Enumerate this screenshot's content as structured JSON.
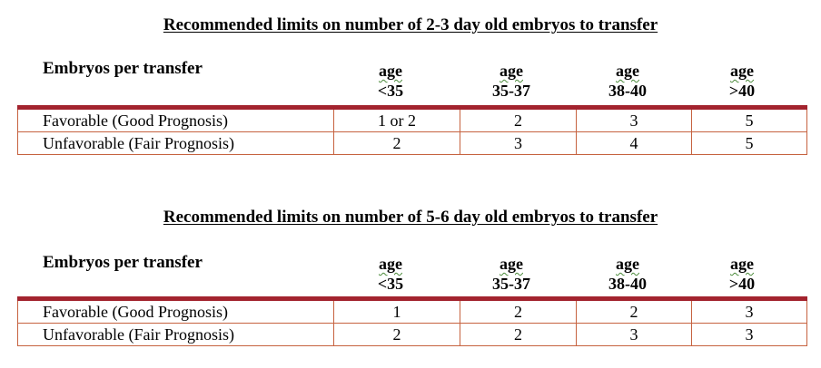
{
  "tables": [
    {
      "title": "Recommended limits on number of 2-3 day old embryos to transfer",
      "row_header": "Embryos per transfer",
      "columns": [
        {
          "age": "age",
          "range": "<35"
        },
        {
          "age": "age",
          "range": "35-37"
        },
        {
          "age": "age",
          "range": "38-40"
        },
        {
          "age": "age",
          "range": ">40"
        }
      ],
      "rows": [
        {
          "label": "Favorable (Good Prognosis)",
          "values": [
            "1 or 2",
            "2",
            "3",
            "5"
          ]
        },
        {
          "label": "Unfavorable (Fair Prognosis)",
          "values": [
            "2",
            "3",
            "4",
            "5"
          ]
        }
      ]
    },
    {
      "title": "Recommended limits on number of 5-6 day old embryos to transfer",
      "row_header": "Embryos per transfer",
      "columns": [
        {
          "age": "age",
          "range": "<35"
        },
        {
          "age": "age",
          "range": "35-37"
        },
        {
          "age": "age",
          "range": "38-40"
        },
        {
          "age": "age",
          "range": ">40"
        }
      ],
      "rows": [
        {
          "label": "Favorable (Good Prognosis)",
          "values": [
            "1",
            "2",
            "2",
            "3"
          ]
        },
        {
          "label": "Unfavorable (Fair Prognosis)",
          "values": [
            "2",
            "2",
            "3",
            "3"
          ]
        }
      ]
    }
  ],
  "colors": {
    "header_rule": "#a3232e",
    "grid_line": "#c6623f",
    "spell_underline": "#4a8a3a"
  }
}
